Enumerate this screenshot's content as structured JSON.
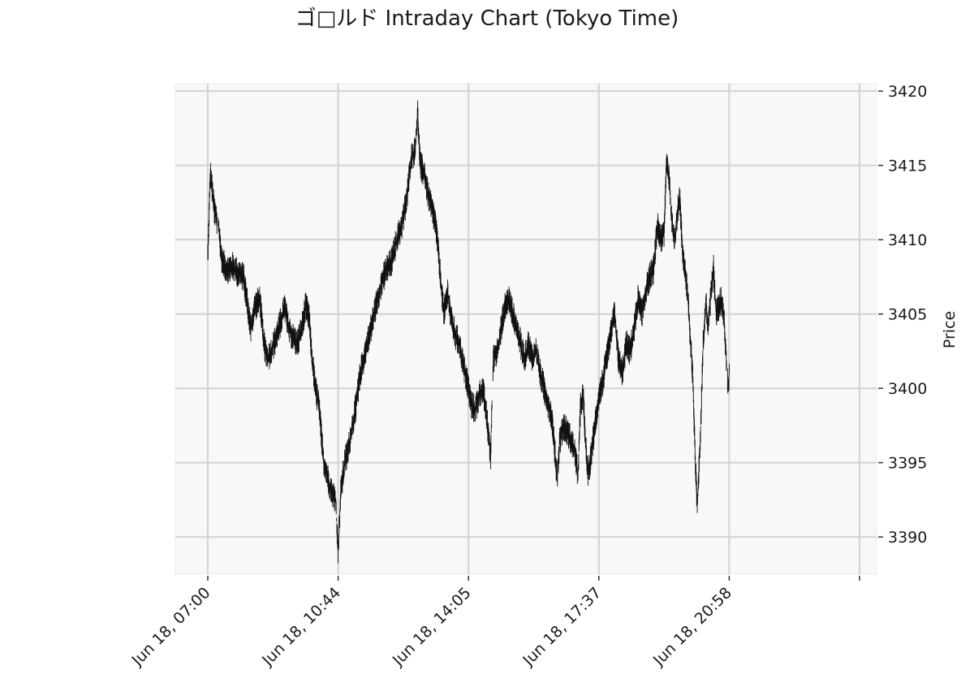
{
  "chart_data": {
    "type": "candlestick",
    "title": "ゴ□ルド Intraday Chart (Tokyo Time)",
    "xlabel": "",
    "ylabel": "Price",
    "ylim": [
      3387.5,
      3420.5
    ],
    "y_ticks": [
      3390,
      3395,
      3400,
      3405,
      3410,
      3415,
      3420
    ],
    "x_range_minutes": [
      0,
      1000
    ],
    "x_ticks": [
      {
        "minute": 0,
        "label": "Jun 18, 07:00"
      },
      {
        "minute": 200,
        "label": "Jun 18, 10:44"
      },
      {
        "minute": 400,
        "label": "Jun 18, 14:05"
      },
      {
        "minute": 600,
        "label": "Jun 18, 17:37"
      },
      {
        "minute": 800,
        "label": "Jun 18, 20:58"
      },
      {
        "minute": 1000,
        "label": ""
      }
    ],
    "grid": true,
    "y_axis_side": "right",
    "price_path": [
      [
        0,
        3409
      ],
      [
        4,
        3414.5
      ],
      [
        10,
        3412
      ],
      [
        16,
        3411
      ],
      [
        22,
        3408.5
      ],
      [
        30,
        3408
      ],
      [
        38,
        3408.2
      ],
      [
        46,
        3407.8
      ],
      [
        55,
        3407.5
      ],
      [
        60,
        3406
      ],
      [
        66,
        3404
      ],
      [
        72,
        3405.5
      ],
      [
        80,
        3406
      ],
      [
        86,
        3403
      ],
      [
        92,
        3402
      ],
      [
        98,
        3402.5
      ],
      [
        105,
        3403.5
      ],
      [
        112,
        3404.5
      ],
      [
        118,
        3405.5
      ],
      [
        124,
        3404
      ],
      [
        130,
        3403.5
      ],
      [
        137,
        3403
      ],
      [
        144,
        3404
      ],
      [
        150,
        3405.5
      ],
      [
        155,
        3405
      ],
      [
        160,
        3402
      ],
      [
        165,
        3400
      ],
      [
        170,
        3399
      ],
      [
        174,
        3397
      ],
      [
        178,
        3395
      ],
      [
        184,
        3394
      ],
      [
        190,
        3393
      ],
      [
        196,
        3392.5
      ],
      [
        200,
        3389
      ],
      [
        204,
        3393
      ],
      [
        210,
        3395
      ],
      [
        216,
        3396
      ],
      [
        222,
        3397.5
      ],
      [
        228,
        3399
      ],
      [
        234,
        3401
      ],
      [
        242,
        3402.5
      ],
      [
        250,
        3404
      ],
      [
        258,
        3405.5
      ],
      [
        266,
        3407
      ],
      [
        274,
        3408
      ],
      [
        282,
        3408.5
      ],
      [
        290,
        3410
      ],
      [
        298,
        3411
      ],
      [
        306,
        3413
      ],
      [
        312,
        3415.5
      ],
      [
        318,
        3416
      ],
      [
        322,
        3418.5
      ],
      [
        326,
        3415
      ],
      [
        332,
        3414.5
      ],
      [
        338,
        3413
      ],
      [
        344,
        3412
      ],
      [
        350,
        3411
      ],
      [
        356,
        3408
      ],
      [
        362,
        3405
      ],
      [
        368,
        3406.5
      ],
      [
        374,
        3404.5
      ],
      [
        380,
        3403.5
      ],
      [
        386,
        3403
      ],
      [
        392,
        3401.5
      ],
      [
        398,
        3400.5
      ],
      [
        404,
        3399
      ],
      [
        410,
        3398.5
      ],
      [
        416,
        3399.5
      ],
      [
        422,
        3400
      ],
      [
        428,
        3398
      ],
      [
        434,
        3395.5
      ],
      [
        438,
        3402
      ],
      [
        444,
        3402.5
      ],
      [
        450,
        3404
      ],
      [
        456,
        3405.5
      ],
      [
        462,
        3406
      ],
      [
        468,
        3405
      ],
      [
        474,
        3404
      ],
      [
        480,
        3403
      ],
      [
        486,
        3402
      ],
      [
        492,
        3403
      ],
      [
        498,
        3402
      ],
      [
        504,
        3402.5
      ],
      [
        510,
        3401
      ],
      [
        516,
        3400
      ],
      [
        522,
        3399
      ],
      [
        528,
        3398
      ],
      [
        532,
        3396
      ],
      [
        536,
        3394
      ],
      [
        540,
        3396.5
      ],
      [
        546,
        3397.5
      ],
      [
        552,
        3397
      ],
      [
        558,
        3396.5
      ],
      [
        564,
        3395.5
      ],
      [
        568,
        3394
      ],
      [
        572,
        3399
      ],
      [
        576,
        3399.5
      ],
      [
        580,
        3396
      ],
      [
        584,
        3394
      ],
      [
        588,
        3395.5
      ],
      [
        594,
        3397.5
      ],
      [
        600,
        3399.5
      ],
      [
        606,
        3400.5
      ],
      [
        612,
        3402
      ],
      [
        618,
        3403.5
      ],
      [
        624,
        3405
      ],
      [
        630,
        3402
      ],
      [
        636,
        3401
      ],
      [
        642,
        3403
      ],
      [
        648,
        3402.5
      ],
      [
        654,
        3404
      ],
      [
        660,
        3406
      ],
      [
        666,
        3405
      ],
      [
        672,
        3406.5
      ],
      [
        678,
        3407.5
      ],
      [
        684,
        3408
      ],
      [
        690,
        3411
      ],
      [
        696,
        3410
      ],
      [
        700,
        3410.5
      ],
      [
        704,
        3415.5
      ],
      [
        708,
        3414
      ],
      [
        712,
        3411
      ],
      [
        716,
        3410
      ],
      [
        720,
        3411.5
      ],
      [
        724,
        3413
      ],
      [
        728,
        3409.5
      ],
      [
        732,
        3408
      ],
      [
        736,
        3406.5
      ],
      [
        740,
        3403.5
      ],
      [
        744,
        3401
      ],
      [
        748,
        3395
      ],
      [
        751,
        3392
      ],
      [
        756,
        3397
      ],
      [
        760,
        3403
      ],
      [
        764,
        3406
      ],
      [
        768,
        3404
      ],
      [
        772,
        3406.5
      ],
      [
        776,
        3408
      ],
      [
        780,
        3405
      ],
      [
        784,
        3405.5
      ],
      [
        788,
        3406
      ],
      [
        792,
        3404.8
      ],
      [
        798,
        3400
      ],
      [
        800,
        3401
      ]
    ]
  }
}
